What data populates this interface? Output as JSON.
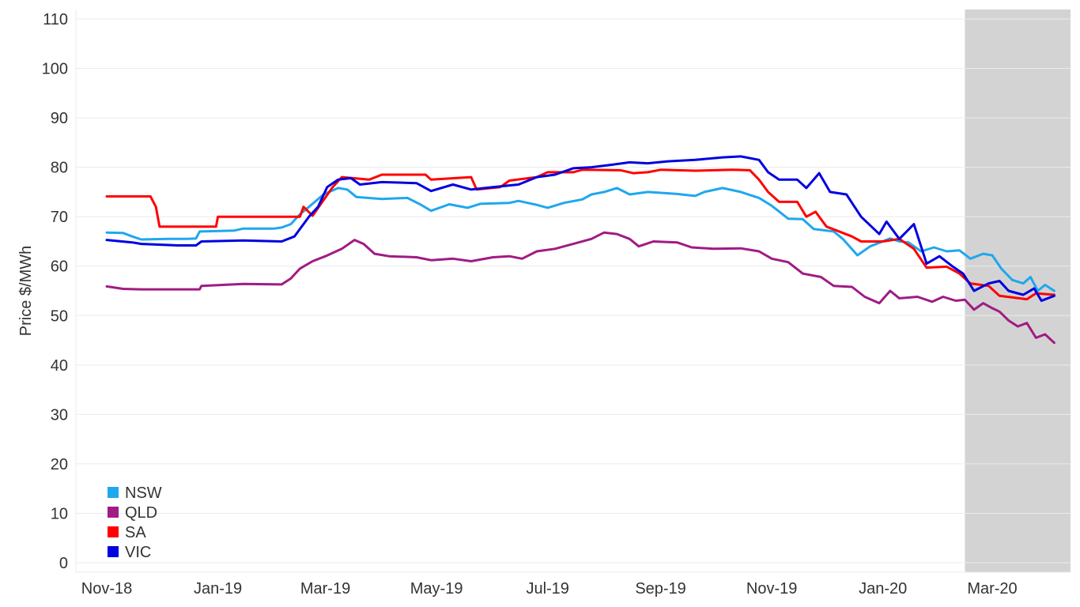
{
  "chart_data": {
    "type": "line",
    "title": "",
    "xlabel": "",
    "ylabel": "Price $/MWh",
    "ylim": [
      0,
      110
    ],
    "yticks": [
      0,
      10,
      20,
      30,
      40,
      50,
      60,
      70,
      80,
      90,
      100,
      110
    ],
    "xlim": [
      "2018-11-01",
      "2020-04-04"
    ],
    "xticks": [
      {
        "date": "2018-11-01",
        "label": "Nov-18"
      },
      {
        "date": "2019-01-01",
        "label": "Jan-19"
      },
      {
        "date": "2019-03-01",
        "label": "Mar-19"
      },
      {
        "date": "2019-05-01",
        "label": "May-19"
      },
      {
        "date": "2019-07-01",
        "label": "Jul-19"
      },
      {
        "date": "2019-09-01",
        "label": "Sep-19"
      },
      {
        "date": "2019-11-01",
        "label": "Nov-19"
      },
      {
        "date": "2020-01-01",
        "label": "Jan-20"
      },
      {
        "date": "2020-03-01",
        "label": "Mar-20"
      }
    ],
    "shaded_region": {
      "start": "2020-02-15",
      "end": "2020-04-04",
      "color": "#d3d3d3"
    },
    "grid": true,
    "legend_position": "bottom-left",
    "series": [
      {
        "name": "NSW",
        "color": "#1fa7ee",
        "points": [
          [
            "2018-11-01",
            66.8
          ],
          [
            "2018-11-10",
            66.7
          ],
          [
            "2018-11-15",
            66.0
          ],
          [
            "2018-11-20",
            65.4
          ],
          [
            "2018-12-05",
            65.5
          ],
          [
            "2018-12-15",
            65.5
          ],
          [
            "2018-12-20",
            65.6
          ],
          [
            "2018-12-22",
            67.0
          ],
          [
            "2019-01-10",
            67.2
          ],
          [
            "2019-01-15",
            67.6
          ],
          [
            "2019-02-01",
            67.6
          ],
          [
            "2019-02-05",
            67.8
          ],
          [
            "2019-02-10",
            68.5
          ],
          [
            "2019-02-15",
            70.5
          ],
          [
            "2019-02-20",
            72.0
          ],
          [
            "2019-02-28",
            74.5
          ],
          [
            "2019-03-08",
            75.8
          ],
          [
            "2019-03-13",
            75.5
          ],
          [
            "2019-03-18",
            74.0
          ],
          [
            "2019-04-01",
            73.6
          ],
          [
            "2019-04-15",
            73.8
          ],
          [
            "2019-04-22",
            72.5
          ],
          [
            "2019-04-28",
            71.2
          ],
          [
            "2019-05-08",
            72.5
          ],
          [
            "2019-05-18",
            71.8
          ],
          [
            "2019-05-25",
            72.6
          ],
          [
            "2019-06-10",
            72.8
          ],
          [
            "2019-06-15",
            73.2
          ],
          [
            "2019-06-25",
            72.4
          ],
          [
            "2019-07-01",
            71.8
          ],
          [
            "2019-07-10",
            72.8
          ],
          [
            "2019-07-20",
            73.5
          ],
          [
            "2019-07-25",
            74.5
          ],
          [
            "2019-08-01",
            75.0
          ],
          [
            "2019-08-08",
            75.8
          ],
          [
            "2019-08-15",
            74.5
          ],
          [
            "2019-08-25",
            75.0
          ],
          [
            "2019-09-10",
            74.6
          ],
          [
            "2019-09-20",
            74.2
          ],
          [
            "2019-09-25",
            75.0
          ],
          [
            "2019-10-05",
            75.8
          ],
          [
            "2019-10-15",
            75.0
          ],
          [
            "2019-10-25",
            73.8
          ],
          [
            "2019-11-01",
            72.2
          ],
          [
            "2019-11-10",
            69.6
          ],
          [
            "2019-11-18",
            69.5
          ],
          [
            "2019-11-24",
            67.5
          ],
          [
            "2019-12-05",
            67.0
          ],
          [
            "2019-12-10",
            65.5
          ],
          [
            "2019-12-18",
            62.2
          ],
          [
            "2019-12-25",
            64.0
          ],
          [
            "2020-01-05",
            65.6
          ],
          [
            "2020-01-10",
            65.0
          ],
          [
            "2020-01-15",
            64.8
          ],
          [
            "2020-01-22",
            63.0
          ],
          [
            "2020-01-29",
            63.8
          ],
          [
            "2020-02-05",
            63.0
          ],
          [
            "2020-02-12",
            63.2
          ],
          [
            "2020-02-18",
            61.5
          ],
          [
            "2020-02-25",
            62.5
          ],
          [
            "2020-03-01",
            62.2
          ],
          [
            "2020-03-06",
            59.5
          ],
          [
            "2020-03-12",
            57.2
          ],
          [
            "2020-03-18",
            56.5
          ],
          [
            "2020-03-22",
            57.8
          ],
          [
            "2020-03-26",
            55.0
          ],
          [
            "2020-03-30",
            56.2
          ],
          [
            "2020-04-04",
            55.0
          ]
        ]
      },
      {
        "name": "QLD",
        "color": "#a01b84",
        "points": [
          [
            "2018-11-01",
            55.9
          ],
          [
            "2018-11-10",
            55.4
          ],
          [
            "2018-11-20",
            55.3
          ],
          [
            "2018-12-22",
            55.3
          ],
          [
            "2018-12-23",
            56.0
          ],
          [
            "2019-01-15",
            56.4
          ],
          [
            "2019-02-05",
            56.3
          ],
          [
            "2019-02-10",
            57.5
          ],
          [
            "2019-02-15",
            59.5
          ],
          [
            "2019-02-22",
            61.0
          ],
          [
            "2019-03-01",
            62.0
          ],
          [
            "2019-03-10",
            63.5
          ],
          [
            "2019-03-17",
            65.3
          ],
          [
            "2019-03-22",
            64.5
          ],
          [
            "2019-03-28",
            62.5
          ],
          [
            "2019-04-05",
            62.0
          ],
          [
            "2019-04-20",
            61.8
          ],
          [
            "2019-04-28",
            61.2
          ],
          [
            "2019-05-10",
            61.5
          ],
          [
            "2019-05-20",
            61.0
          ],
          [
            "2019-06-01",
            61.8
          ],
          [
            "2019-06-10",
            62.0
          ],
          [
            "2019-06-17",
            61.5
          ],
          [
            "2019-06-25",
            63.0
          ],
          [
            "2019-07-05",
            63.5
          ],
          [
            "2019-07-15",
            64.5
          ],
          [
            "2019-07-25",
            65.5
          ],
          [
            "2019-08-01",
            66.8
          ],
          [
            "2019-08-08",
            66.5
          ],
          [
            "2019-08-15",
            65.5
          ],
          [
            "2019-08-20",
            64.0
          ],
          [
            "2019-08-28",
            65.0
          ],
          [
            "2019-09-10",
            64.8
          ],
          [
            "2019-09-18",
            63.8
          ],
          [
            "2019-09-30",
            63.5
          ],
          [
            "2019-10-15",
            63.6
          ],
          [
            "2019-10-25",
            63.0
          ],
          [
            "2019-11-01",
            61.5
          ],
          [
            "2019-11-10",
            60.8
          ],
          [
            "2019-11-18",
            58.5
          ],
          [
            "2019-11-28",
            57.8
          ],
          [
            "2019-12-05",
            56.0
          ],
          [
            "2019-12-15",
            55.8
          ],
          [
            "2019-12-22",
            53.8
          ],
          [
            "2019-12-30",
            52.5
          ],
          [
            "2020-01-05",
            55.0
          ],
          [
            "2020-01-10",
            53.5
          ],
          [
            "2020-01-20",
            53.8
          ],
          [
            "2020-01-28",
            52.8
          ],
          [
            "2020-02-03",
            53.8
          ],
          [
            "2020-02-10",
            53.0
          ],
          [
            "2020-02-15",
            53.2
          ],
          [
            "2020-02-20",
            51.2
          ],
          [
            "2020-02-25",
            52.5
          ],
          [
            "2020-03-01",
            51.5
          ],
          [
            "2020-03-05",
            50.8
          ],
          [
            "2020-03-10",
            49.0
          ],
          [
            "2020-03-15",
            47.8
          ],
          [
            "2020-03-20",
            48.5
          ],
          [
            "2020-03-25",
            45.5
          ],
          [
            "2020-03-30",
            46.2
          ],
          [
            "2020-04-04",
            44.5
          ]
        ]
      },
      {
        "name": "SA",
        "color": "#ff0000",
        "points": [
          [
            "2018-11-01",
            74.1
          ],
          [
            "2018-11-25",
            74.1
          ],
          [
            "2018-11-28",
            72.0
          ],
          [
            "2018-11-30",
            68.0
          ],
          [
            "2018-12-31",
            68.0
          ],
          [
            "2019-01-01",
            70.0
          ],
          [
            "2019-02-15",
            70.0
          ],
          [
            "2019-02-17",
            72.0
          ],
          [
            "2019-02-22",
            70.2
          ],
          [
            "2019-03-05",
            76.0
          ],
          [
            "2019-03-10",
            78.0
          ],
          [
            "2019-03-25",
            77.5
          ],
          [
            "2019-04-01",
            78.5
          ],
          [
            "2019-04-25",
            78.5
          ],
          [
            "2019-04-28",
            77.5
          ],
          [
            "2019-05-20",
            78.0
          ],
          [
            "2019-05-23",
            75.5
          ],
          [
            "2019-06-05",
            76.0
          ],
          [
            "2019-06-10",
            77.3
          ],
          [
            "2019-06-25",
            78.0
          ],
          [
            "2019-07-01",
            79.0
          ],
          [
            "2019-07-15",
            79.0
          ],
          [
            "2019-07-20",
            79.5
          ],
          [
            "2019-08-10",
            79.4
          ],
          [
            "2019-08-17",
            78.8
          ],
          [
            "2019-08-25",
            79.0
          ],
          [
            "2019-09-01",
            79.5
          ],
          [
            "2019-09-20",
            79.3
          ],
          [
            "2019-10-10",
            79.5
          ],
          [
            "2019-10-20",
            79.4
          ],
          [
            "2019-10-25",
            77.5
          ],
          [
            "2019-10-30",
            75.0
          ],
          [
            "2019-11-05",
            73.0
          ],
          [
            "2019-11-15",
            73.0
          ],
          [
            "2019-11-20",
            70.0
          ],
          [
            "2019-11-25",
            71.0
          ],
          [
            "2019-12-01",
            68.0
          ],
          [
            "2019-12-15",
            66.0
          ],
          [
            "2019-12-20",
            65.0
          ],
          [
            "2020-01-01",
            65.0
          ],
          [
            "2020-01-10",
            65.5
          ],
          [
            "2020-01-18",
            63.5
          ],
          [
            "2020-01-25",
            59.7
          ],
          [
            "2020-02-05",
            59.9
          ],
          [
            "2020-02-12",
            58.5
          ],
          [
            "2020-02-18",
            56.5
          ],
          [
            "2020-02-28",
            56.0
          ],
          [
            "2020-03-05",
            54.0
          ],
          [
            "2020-03-20",
            53.3
          ],
          [
            "2020-03-25",
            54.5
          ],
          [
            "2020-04-04",
            54.2
          ]
        ]
      },
      {
        "name": "VIC",
        "color": "#0000e0",
        "points": [
          [
            "2018-11-01",
            65.3
          ],
          [
            "2018-11-15",
            64.8
          ],
          [
            "2018-11-20",
            64.5
          ],
          [
            "2018-12-10",
            64.2
          ],
          [
            "2018-12-20",
            64.2
          ],
          [
            "2018-12-23",
            65.0
          ],
          [
            "2019-01-15",
            65.2
          ],
          [
            "2019-02-05",
            65.0
          ],
          [
            "2019-02-12",
            66.0
          ],
          [
            "2019-02-20",
            70.0
          ],
          [
            "2019-02-25",
            72.0
          ],
          [
            "2019-03-02",
            76.0
          ],
          [
            "2019-03-08",
            77.5
          ],
          [
            "2019-03-15",
            77.8
          ],
          [
            "2019-03-20",
            76.5
          ],
          [
            "2019-04-01",
            77.0
          ],
          [
            "2019-04-20",
            76.8
          ],
          [
            "2019-04-28",
            75.2
          ],
          [
            "2019-05-10",
            76.5
          ],
          [
            "2019-05-20",
            75.5
          ],
          [
            "2019-06-01",
            76.0
          ],
          [
            "2019-06-15",
            76.5
          ],
          [
            "2019-06-25",
            78.0
          ],
          [
            "2019-07-05",
            78.5
          ],
          [
            "2019-07-15",
            79.8
          ],
          [
            "2019-07-25",
            80.0
          ],
          [
            "2019-08-05",
            80.5
          ],
          [
            "2019-08-15",
            81.0
          ],
          [
            "2019-08-25",
            80.8
          ],
          [
            "2019-09-05",
            81.2
          ],
          [
            "2019-09-20",
            81.5
          ],
          [
            "2019-10-05",
            82.0
          ],
          [
            "2019-10-15",
            82.2
          ],
          [
            "2019-10-25",
            81.5
          ],
          [
            "2019-10-30",
            79.0
          ],
          [
            "2019-11-05",
            77.5
          ],
          [
            "2019-11-15",
            77.5
          ],
          [
            "2019-11-20",
            75.8
          ],
          [
            "2019-11-27",
            78.8
          ],
          [
            "2019-12-03",
            75.0
          ],
          [
            "2019-12-12",
            74.5
          ],
          [
            "2019-12-20",
            70.0
          ],
          [
            "2019-12-30",
            66.5
          ],
          [
            "2020-01-03",
            69.0
          ],
          [
            "2020-01-10",
            65.5
          ],
          [
            "2020-01-18",
            68.5
          ],
          [
            "2020-01-25",
            60.5
          ],
          [
            "2020-02-01",
            62.0
          ],
          [
            "2020-02-08",
            60.0
          ],
          [
            "2020-02-14",
            58.5
          ],
          [
            "2020-02-20",
            55.0
          ],
          [
            "2020-02-28",
            56.5
          ],
          [
            "2020-03-05",
            57.0
          ],
          [
            "2020-03-10",
            55.0
          ],
          [
            "2020-03-18",
            54.2
          ],
          [
            "2020-03-24",
            55.5
          ],
          [
            "2020-03-28",
            53.0
          ],
          [
            "2020-04-04",
            54.0
          ]
        ]
      }
    ]
  }
}
